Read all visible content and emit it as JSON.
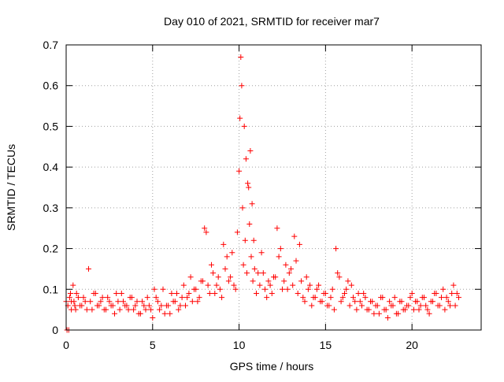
{
  "chart_data": {
    "type": "scatter",
    "title": "Day 010 of 2021, SRMTID for receiver mar7",
    "xlabel": "GPS time / hours",
    "ylabel": "SRMTID / TECUs",
    "xlim": [
      0,
      24
    ],
    "ylim": [
      0,
      0.7
    ],
    "xticks": [
      0,
      5,
      10,
      15,
      20
    ],
    "xtick_labels": [
      "0",
      "5",
      "10",
      "15",
      "20"
    ],
    "yticks": [
      0,
      0.1,
      0.2,
      0.3,
      0.4,
      0.5,
      0.6,
      0.7
    ],
    "ytick_labels": [
      "0",
      "0.1",
      "0.2",
      "0.3",
      "0.4",
      "0.5",
      "0.6",
      "0.7"
    ],
    "grid": true,
    "marker": "+",
    "color": "#ff0000",
    "series": [
      {
        "name": "SRMTID",
        "x": [
          0.0,
          0.1,
          0.2,
          0.3,
          0.4,
          0.5,
          0.6,
          0.8,
          1.0,
          1.2,
          1.3,
          1.4,
          1.6,
          1.8,
          2.0,
          2.2,
          2.4,
          2.6,
          2.8,
          3.0,
          3.2,
          3.4,
          3.6,
          3.8,
          4.0,
          4.2,
          4.4,
          4.6,
          4.8,
          5.0,
          5.2,
          5.4,
          5.6,
          5.8,
          6.0,
          6.2,
          6.4,
          6.6,
          6.8,
          7.0,
          7.2,
          7.4,
          7.6,
          7.8,
          8.0,
          8.1,
          8.2,
          8.4,
          8.6,
          8.8,
          9.0,
          9.1,
          9.2,
          9.4,
          9.6,
          9.8,
          9.9,
          10.0,
          10.05,
          10.1,
          10.15,
          10.2,
          10.3,
          10.4,
          10.5,
          10.6,
          10.7,
          10.8,
          10.9,
          11.0,
          11.2,
          11.4,
          11.6,
          11.8,
          12.0,
          12.2,
          12.3,
          12.4,
          12.6,
          12.8,
          13.0,
          13.2,
          13.3,
          13.4,
          13.6,
          13.8,
          14.0,
          14.2,
          14.4,
          14.6,
          14.8,
          15.0,
          15.2,
          15.4,
          15.6,
          15.7,
          15.8,
          16.0,
          16.2,
          16.4,
          16.6,
          16.8,
          17.0,
          17.2,
          17.4,
          17.6,
          17.8,
          18.0,
          18.2,
          18.4,
          18.6,
          18.8,
          19.0,
          19.2,
          19.4,
          19.6,
          19.8,
          20.0,
          20.2,
          20.4,
          20.6,
          20.8,
          21.0,
          21.2,
          21.4,
          21.6,
          21.8,
          22.0,
          22.2,
          22.4,
          22.6,
          0.3,
          5.1,
          0.05,
          0.15,
          0.25,
          0.45,
          0.55,
          0.7,
          0.9,
          1.1,
          1.5,
          1.7,
          1.9,
          2.1,
          2.3,
          2.5,
          2.7,
          2.9,
          3.1,
          3.3,
          3.5,
          3.7,
          3.9,
          4.1,
          4.3,
          4.5,
          4.7,
          4.9,
          5.3,
          5.5,
          5.7,
          5.9,
          6.1,
          6.3,
          6.5,
          6.7,
          6.9,
          7.1,
          7.3,
          7.5,
          7.7,
          7.9,
          8.3,
          8.5,
          8.7,
          8.9,
          9.3,
          9.5,
          9.7,
          10.25,
          10.35,
          10.45,
          10.55,
          10.65,
          10.75,
          10.85,
          11.1,
          11.3,
          11.5,
          11.7,
          11.9,
          12.1,
          12.5,
          12.7,
          12.9,
          13.1,
          13.5,
          13.7,
          13.9,
          14.1,
          14.3,
          14.5,
          14.7,
          14.9,
          15.1,
          15.3,
          15.5,
          15.9,
          16.1,
          16.3,
          16.5,
          16.7,
          16.9,
          17.1,
          17.3,
          17.5,
          17.7,
          17.9,
          18.1,
          18.3,
          18.5,
          18.7,
          18.9,
          19.1,
          19.3,
          19.5,
          19.7,
          19.9,
          20.1,
          20.3,
          20.5,
          20.7,
          20.9,
          21.1,
          21.3,
          21.5,
          21.7,
          21.9,
          22.1,
          22.3,
          22.5,
          22.7
        ],
        "y": [
          0.07,
          0.06,
          0.08,
          0.05,
          0.11,
          0.06,
          0.09,
          0.06,
          0.08,
          0.05,
          0.15,
          0.07,
          0.09,
          0.06,
          0.07,
          0.05,
          0.08,
          0.06,
          0.04,
          0.07,
          0.09,
          0.06,
          0.05,
          0.08,
          0.06,
          0.04,
          0.07,
          0.05,
          0.06,
          0.03,
          0.08,
          0.05,
          0.1,
          0.06,
          0.04,
          0.07,
          0.09,
          0.06,
          0.11,
          0.08,
          0.13,
          0.1,
          0.07,
          0.12,
          0.25,
          0.24,
          0.11,
          0.16,
          0.09,
          0.13,
          0.08,
          0.21,
          0.15,
          0.12,
          0.19,
          0.1,
          0.24,
          0.39,
          0.52,
          0.67,
          0.6,
          0.3,
          0.5,
          0.42,
          0.36,
          0.26,
          0.18,
          0.12,
          0.15,
          0.09,
          0.11,
          0.14,
          0.08,
          0.11,
          0.13,
          0.25,
          0.18,
          0.2,
          0.12,
          0.1,
          0.15,
          0.23,
          0.17,
          0.09,
          0.12,
          0.07,
          0.1,
          0.06,
          0.08,
          0.11,
          0.07,
          0.09,
          0.06,
          0.1,
          0.2,
          0.14,
          0.13,
          0.08,
          0.1,
          0.06,
          0.08,
          0.05,
          0.07,
          0.09,
          0.05,
          0.07,
          0.04,
          0.06,
          0.08,
          0.05,
          0.03,
          0.06,
          0.08,
          0.04,
          0.07,
          0.05,
          0.06,
          0.09,
          0.07,
          0.05,
          0.08,
          0.06,
          0.04,
          0.07,
          0.09,
          0.06,
          0.1,
          0.08,
          0.06,
          0.11,
          0.09,
          0.07,
          0.1,
          0.0,
          0.0,
          0.09,
          0.07,
          0.05,
          0.08,
          0.06,
          0.07,
          0.05,
          0.09,
          0.06,
          0.08,
          0.05,
          0.07,
          0.06,
          0.09,
          0.05,
          0.07,
          0.06,
          0.08,
          0.05,
          0.07,
          0.04,
          0.06,
          0.08,
          0.05,
          0.07,
          0.06,
          0.04,
          0.06,
          0.09,
          0.07,
          0.05,
          0.08,
          0.06,
          0.09,
          0.07,
          0.1,
          0.08,
          0.12,
          0.09,
          0.14,
          0.11,
          0.1,
          0.18,
          0.13,
          0.11,
          0.16,
          0.22,
          0.14,
          0.35,
          0.44,
          0.31,
          0.22,
          0.14,
          0.19,
          0.1,
          0.12,
          0.09,
          0.13,
          0.1,
          0.16,
          0.14,
          0.11,
          0.21,
          0.08,
          0.13,
          0.11,
          0.08,
          0.1,
          0.07,
          0.09,
          0.06,
          0.08,
          0.05,
          0.07,
          0.09,
          0.12,
          0.11,
          0.07,
          0.09,
          0.06,
          0.08,
          0.05,
          0.07,
          0.06,
          0.04,
          0.08,
          0.05,
          0.07,
          0.06,
          0.04,
          0.07,
          0.05,
          0.06,
          0.08,
          0.05,
          0.07,
          0.06,
          0.08,
          0.05,
          0.07,
          0.09,
          0.06,
          0.08,
          0.05,
          0.07,
          0.09,
          0.06,
          0.08
        ]
      }
    ]
  }
}
